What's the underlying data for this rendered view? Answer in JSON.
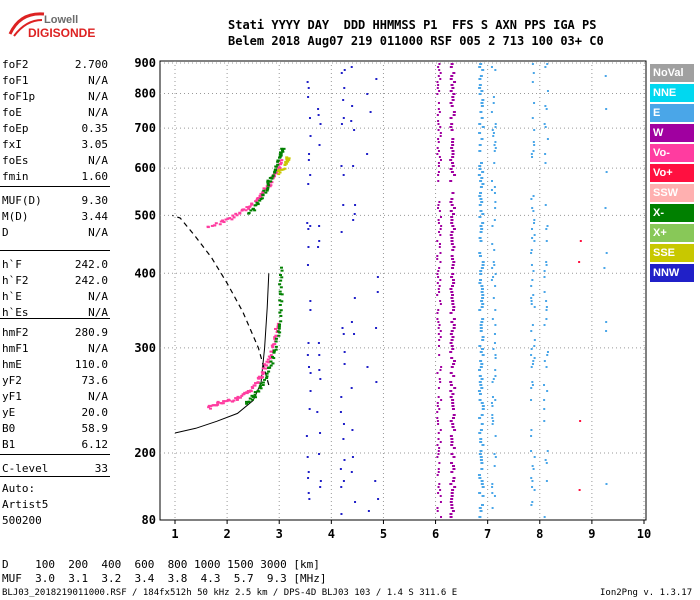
{
  "logo": {
    "line1": "Lowell",
    "line2": "DIGISONDE"
  },
  "header": {
    "line1": "Stati YYYY DAY  DDD HHMMSS P1  FFS S AXN PPS IGA PS",
    "line2": "Belem 2018 Aug07 219 011000 RSF 005 2 713 100 03+ C0"
  },
  "scaled": [
    {
      "k": "foF2",
      "v": "2.700"
    },
    {
      "k": "foF1",
      "v": "N/A"
    },
    {
      "k": "foF1p",
      "v": "N/A"
    },
    {
      "k": "foE",
      "v": "N/A"
    },
    {
      "k": "foEp",
      "v": "0.35"
    },
    {
      "k": "fxI",
      "v": "3.05"
    },
    {
      "k": "foEs",
      "v": "N/A"
    },
    {
      "k": "fmin",
      "v": "1.60"
    },
    {
      "k": "MUF(D)",
      "v": "9.30"
    },
    {
      "k": "M(D)",
      "v": "3.44"
    },
    {
      "k": "D",
      "v": "N/A"
    },
    {
      "k": "h`F",
      "v": "242.0"
    },
    {
      "k": "h`F2",
      "v": "242.0"
    },
    {
      "k": "h`E",
      "v": "N/A"
    },
    {
      "k": "h`Es",
      "v": "N/A"
    },
    {
      "k": "hmF2",
      "v": "280.9"
    },
    {
      "k": "hmF1",
      "v": "N/A"
    },
    {
      "k": "hmE",
      "v": "110.0"
    },
    {
      "k": "yF2",
      "v": "73.6"
    },
    {
      "k": "yF1",
      "v": "N/A"
    },
    {
      "k": "yE",
      "v": "20.0"
    },
    {
      "k": "B0",
      "v": "58.9"
    },
    {
      "k": "B1",
      "v": "6.12"
    },
    {
      "k": "C-level",
      "v": "33"
    }
  ],
  "auto": {
    "l1": "Auto:",
    "l2": "Artist5",
    "l3": "500200"
  },
  "footer": {
    "d_line": "D    100  200  400  600  800 1000 1500 3000 [km]",
    "muf_line": "MUF  3.0  3.1  3.2  3.4  3.8  4.3  5.7  9.3 [MHz]",
    "info": "BLJ03_2018219011000.RSF / 184fx512h 50 kHz 2.5 km / DPS-4D BLJ03 103 / 1.4 S 311.6 E",
    "version": "Ion2Png v. 1.3.17"
  },
  "legend": [
    {
      "label": "NoVal",
      "color": "#a0a0a0"
    },
    {
      "label": "NNE",
      "color": "#00d8f0"
    },
    {
      "label": "E",
      "color": "#4aa6e8"
    },
    {
      "label": "W",
      "color": "#a000a0"
    },
    {
      "label": "Vo-",
      "color": "#ff3ca0"
    },
    {
      "label": "Vo+",
      "color": "#ff1040"
    },
    {
      "label": "SSW",
      "color": "#ffb0b0"
    },
    {
      "label": "X-",
      "color": "#008000"
    },
    {
      "label": "X+",
      "color": "#88c858"
    },
    {
      "label": "SSE",
      "color": "#c8c800"
    },
    {
      "label": "NNW",
      "color": "#2020c8"
    }
  ],
  "chart_data": {
    "type": "scatter",
    "xlabel": "",
    "ylabel": "",
    "xlim": [
      0.8,
      10
    ],
    "ylim": [
      80,
      900
    ],
    "x_ticks": [
      1,
      2,
      3,
      4,
      5,
      6,
      7,
      8,
      9,
      10
    ],
    "y_ticks": [
      80,
      200,
      300,
      400,
      500,
      600,
      700,
      800,
      900
    ],
    "grid": true,
    "profile_solid": [
      {
        "x": 1.0,
        "y": 216
      },
      {
        "x": 1.4,
        "y": 220
      },
      {
        "x": 1.8,
        "y": 226
      },
      {
        "x": 2.2,
        "y": 233
      },
      {
        "x": 2.5,
        "y": 245
      },
      {
        "x": 2.65,
        "y": 262
      },
      {
        "x": 2.72,
        "y": 300
      },
      {
        "x": 2.77,
        "y": 350
      },
      {
        "x": 2.8,
        "y": 400
      }
    ],
    "profile_dashed": [
      {
        "x": 2.8,
        "y": 260
      },
      {
        "x": 2.6,
        "y": 300
      },
      {
        "x": 2.3,
        "y": 345
      },
      {
        "x": 2.0,
        "y": 385
      },
      {
        "x": 1.7,
        "y": 425
      },
      {
        "x": 1.4,
        "y": 460
      },
      {
        "x": 1.1,
        "y": 495
      },
      {
        "x": 0.95,
        "y": 500
      }
    ],
    "trace_o_f2": [
      {
        "x": 1.6,
        "y": 239
      },
      {
        "x": 1.8,
        "y": 243
      },
      {
        "x": 2.0,
        "y": 245
      },
      {
        "x": 2.2,
        "y": 248
      },
      {
        "x": 2.4,
        "y": 255
      },
      {
        "x": 2.55,
        "y": 263
      },
      {
        "x": 2.65,
        "y": 272
      },
      {
        "x": 2.75,
        "y": 285
      },
      {
        "x": 2.85,
        "y": 300
      },
      {
        "x": 2.9,
        "y": 315
      },
      {
        "x": 2.95,
        "y": 330
      }
    ],
    "trace_x_f2": [
      {
        "x": 2.35,
        "y": 243
      },
      {
        "x": 2.5,
        "y": 250
      },
      {
        "x": 2.65,
        "y": 262
      },
      {
        "x": 2.8,
        "y": 280
      },
      {
        "x": 2.9,
        "y": 300
      },
      {
        "x": 3.0,
        "y": 330
      },
      {
        "x": 3.0,
        "y": 370
      },
      {
        "x": 3.0,
        "y": 410
      }
    ],
    "trace_o_2hop": [
      {
        "x": 1.6,
        "y": 478
      },
      {
        "x": 1.9,
        "y": 490
      },
      {
        "x": 2.2,
        "y": 505
      },
      {
        "x": 2.4,
        "y": 520
      },
      {
        "x": 2.6,
        "y": 540
      },
      {
        "x": 2.75,
        "y": 560
      },
      {
        "x": 2.85,
        "y": 580
      },
      {
        "x": 2.95,
        "y": 600
      },
      {
        "x": 3.0,
        "y": 620
      }
    ],
    "trace_x_2hop": [
      {
        "x": 2.4,
        "y": 505
      },
      {
        "x": 2.55,
        "y": 525
      },
      {
        "x": 2.7,
        "y": 550
      },
      {
        "x": 2.8,
        "y": 575
      },
      {
        "x": 2.9,
        "y": 600
      },
      {
        "x": 3.0,
        "y": 630
      },
      {
        "x": 3.05,
        "y": 650
      }
    ],
    "trace_sse": [
      {
        "x": 2.95,
        "y": 590
      },
      {
        "x": 3.1,
        "y": 610
      },
      {
        "x": 3.15,
        "y": 630
      }
    ]
  }
}
